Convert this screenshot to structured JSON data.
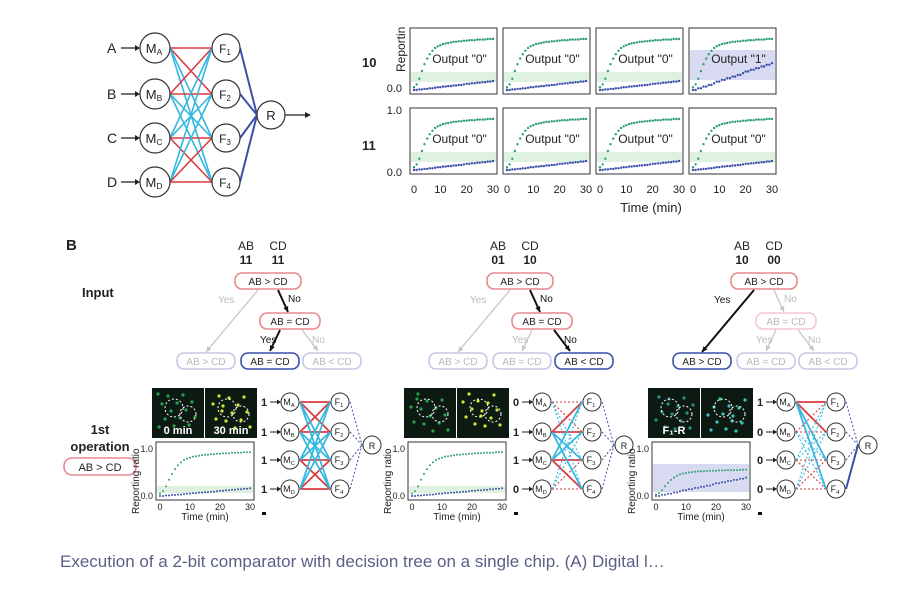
{
  "panelA": {
    "inputs": [
      "A",
      "B",
      "C",
      "D"
    ],
    "middle_nodes": [
      {
        "base": "M",
        "sub": "A"
      },
      {
        "base": "M",
        "sub": "B"
      },
      {
        "base": "M",
        "sub": "C"
      },
      {
        "base": "M",
        "sub": "D"
      }
    ],
    "f_nodes": [
      {
        "base": "F",
        "sub": "1"
      },
      {
        "base": "F",
        "sub": "2"
      },
      {
        "base": "F",
        "sub": "3"
      },
      {
        "base": "F",
        "sub": "4"
      }
    ],
    "reporter": "R",
    "row_labels": [
      "10",
      "11"
    ],
    "ylabel": "Reporting ratio",
    "ylabel_visible": "Reportin",
    "y_ticks_row1": [
      "0.0"
    ],
    "y_ticks_row2": [
      "1.0",
      "0.0"
    ],
    "xlabel": "Time (min)",
    "x_ticks": [
      "0",
      "10",
      "20",
      "30"
    ],
    "plot_labels_row1": [
      "Output \"0\"",
      "Output \"0\"",
      "Output \"0\"",
      "Output \"1\""
    ],
    "plot_labels_row2": [
      "Output \"0\"",
      "Output \"0\"",
      "Output \"0\"",
      "Output \"0\""
    ]
  },
  "panelB": {
    "label": "B",
    "input_label": "Input",
    "operation_label": "1st\noperation",
    "operation_badge": "AB > CD",
    "columns": [
      {
        "ab": "AB",
        "cd": "CD",
        "ab_val": "11",
        "cd_val": "11",
        "root": "AB > CD",
        "second": "AB = CD",
        "leaves": [
          "AB > CD",
          "AB = CD",
          "AB < CD"
        ],
        "path": [
          "No",
          "Yes"
        ],
        "inputs": [
          "1",
          "1",
          "1",
          "1"
        ],
        "image_labels": [
          "0 min",
          "30 min"
        ]
      },
      {
        "ab": "AB",
        "cd": "CD",
        "ab_val": "01",
        "cd_val": "10",
        "root": "AB > CD",
        "second": "AB = CD",
        "leaves": [
          "AB > CD",
          "AB = CD",
          "AB < CD"
        ],
        "path": [
          "No",
          "No"
        ],
        "inputs": [
          "0",
          "1",
          "1",
          "0"
        ],
        "image_labels": []
      },
      {
        "ab": "AB",
        "cd": "CD",
        "ab_val": "10",
        "cd_val": "00",
        "root": "AB > CD",
        "second": "AB = CD",
        "leaves": [
          "AB > CD",
          "AB = CD",
          "AB < CD"
        ],
        "path": [
          "Yes"
        ],
        "inputs": [
          "1",
          "0",
          "0",
          "0"
        ],
        "image_labels": [
          "F₁-R"
        ]
      }
    ],
    "mini_plot": {
      "ylabel": "Reporting ratio",
      "y_ticks": [
        "1.0",
        "0.0"
      ],
      "xlabel": "Time (min)",
      "x_ticks": [
        "0",
        "10",
        "20",
        "30"
      ]
    }
  },
  "caption": "Execution of a 2-bit comparator with decision tree on a single chip. (A) Digital l…",
  "colors": {
    "pink": "#e8878f",
    "blue": "#7b86c9",
    "red": "#d93a40",
    "cyan": "#35b7e0",
    "navy": "#3a4fa8",
    "green": "#2f9e73",
    "gray": "#c4c4c4",
    "caption": "#5a5f86",
    "shade_green": "#dff2e2",
    "shade_blue": "#d7daf0"
  },
  "chart_data": {
    "type": "scatter",
    "title": "",
    "xlabel": "Time (min)",
    "ylabel": "Reporting ratio",
    "xlim": [
      0,
      30
    ],
    "ylim": [
      0,
      1.0
    ],
    "x": [
      0,
      1,
      2,
      3,
      4,
      5,
      6,
      7,
      8,
      9,
      10,
      11,
      12,
      13,
      14,
      15,
      16,
      17,
      18,
      19,
      20,
      21,
      22,
      23,
      24,
      25,
      26,
      27,
      28,
      29,
      30
    ],
    "series": [
      {
        "values": [
          0.05,
          0.1,
          0.2,
          0.34,
          0.46,
          0.56,
          0.64,
          0.7,
          0.75,
          0.78,
          0.8,
          0.82,
          0.83,
          0.84,
          0.85,
          0.86,
          0.86,
          0.87,
          0.87,
          0.88,
          0.88,
          0.89,
          0.89,
          0.89,
          0.9,
          0.9,
          0.9,
          0.9,
          0.91,
          0.91,
          0.91
        ]
      },
      {
        "values": [
          0.0,
          0.0,
          0.01,
          0.01,
          0.02,
          0.02,
          0.03,
          0.03,
          0.04,
          0.05,
          0.05,
          0.06,
          0.06,
          0.07,
          0.07,
          0.08,
          0.08,
          0.09,
          0.09,
          0.1,
          0.11,
          0.11,
          0.12,
          0.12,
          0.13,
          0.13,
          0.14,
          0.14,
          0.15,
          0.15,
          0.16
        ]
      }
    ]
  }
}
